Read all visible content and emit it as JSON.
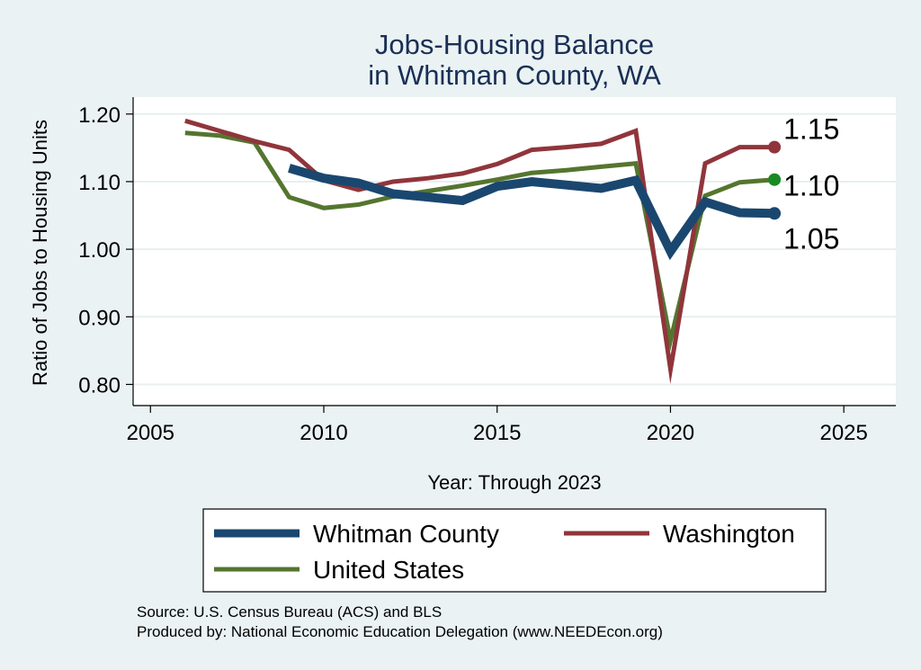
{
  "chart_data": {
    "type": "line",
    "title": [
      "Jobs-Housing Balance",
      "in Whitman County, WA"
    ],
    "xlabel": "Year: Through 2023",
    "ylabel": "Ratio of Jobs to Housing Units",
    "xlim": [
      2004.5,
      2026.5
    ],
    "ylim": [
      0.77,
      1.225
    ],
    "x_ticks": [
      2005,
      2010,
      2015,
      2020,
      2025
    ],
    "y_ticks": [
      0.8,
      0.9,
      1.0,
      1.1,
      1.2
    ],
    "y_tick_labels": [
      "0.80",
      "0.90",
      "1.00",
      "1.10",
      "1.20"
    ],
    "grid": "horizontal",
    "legend_position": "bottom",
    "series": [
      {
        "name": "Whitman County",
        "color": "#1a476f",
        "x": [
          2009,
          2010,
          2011,
          2012,
          2013,
          2014,
          2015,
          2016,
          2017,
          2018,
          2019,
          2020,
          2021,
          2022,
          2023
        ],
        "values": [
          1.12,
          1.105,
          1.098,
          1.082,
          1.077,
          1.072,
          1.093,
          1.1,
          1.095,
          1.09,
          1.102,
          0.997,
          1.07,
          1.054,
          1.053
        ],
        "end_label": "1.05",
        "marker_color": "#1a476f"
      },
      {
        "name": "Washington",
        "color": "#90353b",
        "x": [
          2006,
          2007,
          2008,
          2009,
          2010,
          2011,
          2012,
          2013,
          2014,
          2015,
          2016,
          2017,
          2018,
          2019,
          2020,
          2021,
          2022,
          2023
        ],
        "values": [
          1.19,
          1.175,
          1.16,
          1.147,
          1.102,
          1.088,
          1.1,
          1.105,
          1.112,
          1.126,
          1.147,
          1.151,
          1.156,
          1.175,
          0.822,
          1.127,
          1.151,
          1.151
        ],
        "end_label": "1.15",
        "marker_color": "#90353b"
      },
      {
        "name": "United States",
        "color": "#55752f",
        "x": [
          2006,
          2007,
          2008,
          2009,
          2010,
          2011,
          2012,
          2013,
          2014,
          2015,
          2016,
          2017,
          2018,
          2019,
          2020,
          2021,
          2022,
          2023
        ],
        "values": [
          1.172,
          1.168,
          1.158,
          1.077,
          1.061,
          1.066,
          1.078,
          1.086,
          1.094,
          1.103,
          1.113,
          1.117,
          1.122,
          1.127,
          0.865,
          1.079,
          1.099,
          1.103
        ],
        "end_label": "1.10",
        "marker_color": "#1a8a22"
      }
    ],
    "notes": [
      "Source: U.S. Census Bureau (ACS) and BLS",
      "Produced by: National Economic Education Delegation (www.NEEDEcon.org)"
    ]
  }
}
